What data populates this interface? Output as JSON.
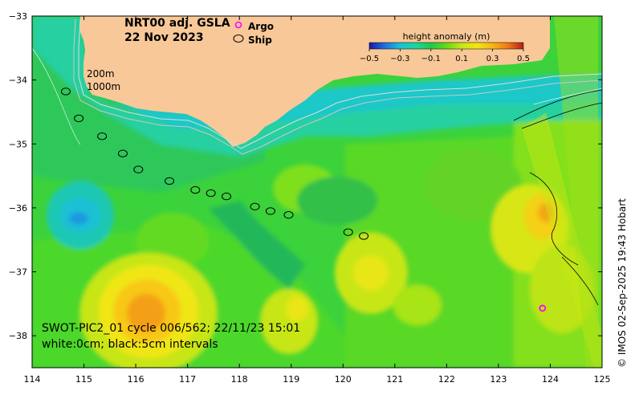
{
  "map": {
    "title_line1": "NRT00 adj. GSLA",
    "title_line2": "22 Nov 2023",
    "legend_argo": "Argo",
    "legend_ship": "Ship",
    "argo_color": "#ff00ff",
    "ship_color": "#000000",
    "contour_label_200": "200m",
    "contour_label_1000": "1000m",
    "info_line1": "SWOT-PIC2_01 cycle 006/562; 22/11/23 15:01",
    "info_line2": "white:0cm; black:5cm intervals",
    "credit": "© IMOS 02-Sep-2025 19:43 Hobart",
    "land_color": "#f8c898",
    "colorbar": {
      "title": "height anomaly (m)",
      "ticks": [
        "−0.5",
        "−0.3",
        "−0.1",
        "0.1",
        "0.3",
        "0.5"
      ],
      "colors": [
        "#1a1aa8",
        "#1f6fe0",
        "#1fc0d8",
        "#18d8a0",
        "#20c850",
        "#64dc14",
        "#c8e614",
        "#f0e614",
        "#f8b414",
        "#f07814",
        "#b41e14"
      ]
    },
    "x_ticks": [
      "114",
      "115",
      "116",
      "117",
      "118",
      "119",
      "120",
      "121",
      "122",
      "123",
      "124",
      "125"
    ],
    "y_ticks": [
      "−33",
      "−34",
      "−35",
      "−36",
      "−37",
      "−38"
    ],
    "lon_range": [
      114,
      125
    ],
    "lat_range": [
      -38.5,
      -33
    ],
    "ship_track": [
      {
        "lon": 114.65,
        "lat": -34.18
      },
      {
        "lon": 114.9,
        "lat": -34.6
      },
      {
        "lon": 115.35,
        "lat": -34.88
      },
      {
        "lon": 115.75,
        "lat": -35.15
      },
      {
        "lon": 116.05,
        "lat": -35.4
      },
      {
        "lon": 116.65,
        "lat": -35.58
      },
      {
        "lon": 117.15,
        "lat": -35.72
      },
      {
        "lon": 117.45,
        "lat": -35.77
      },
      {
        "lon": 117.75,
        "lat": -35.82
      },
      {
        "lon": 118.3,
        "lat": -35.98
      },
      {
        "lon": 118.6,
        "lat": -36.05
      },
      {
        "lon": 118.95,
        "lat": -36.11
      },
      {
        "lon": 120.1,
        "lat": -36.38
      },
      {
        "lon": 120.4,
        "lat": -36.44
      }
    ],
    "argo_floats": [
      {
        "lon": 123.85,
        "lat": -37.57
      }
    ]
  }
}
